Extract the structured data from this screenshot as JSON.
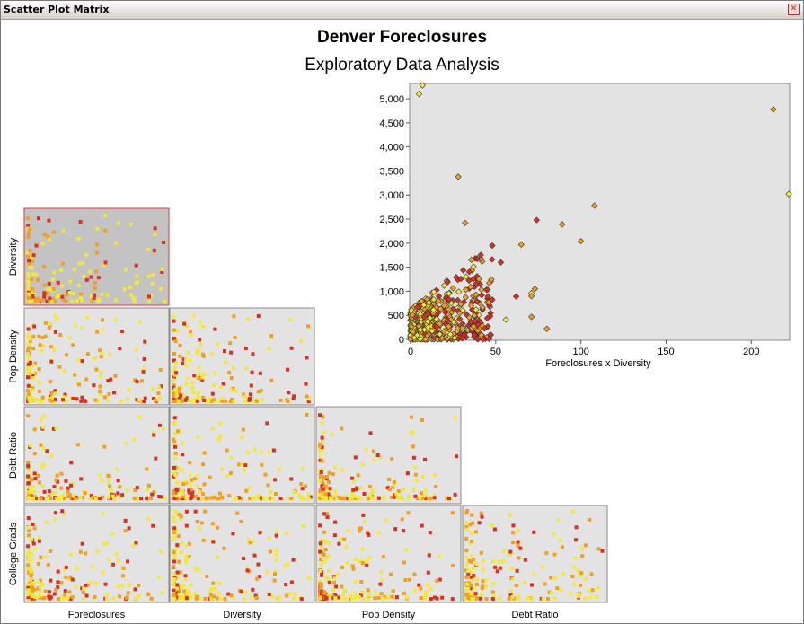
{
  "window": {
    "title": "Scatter Plot Matrix",
    "close_icon": "close-icon"
  },
  "title": "Denver Foreclosures",
  "subtitle": "Exploratory Data Analysis",
  "colors": {
    "panel_bg": "#e3e3e3",
    "selected_panel_bg": "#c3c3c3",
    "selected_border": "#dd3a3a",
    "point_yellow": "#f3e83a",
    "point_orange": "#f0a020",
    "point_red": "#d93020"
  },
  "chart_data": {
    "type": "scatter",
    "matrix": {
      "type": "scatter",
      "variables": [
        "Foreclosures",
        "Diversity",
        "Pop Density",
        "Debt Ratio",
        "College Grads"
      ],
      "row_variables": [
        "Diversity",
        "Pop Density",
        "Debt Ratio",
        "College Grads"
      ],
      "column_variables": [
        "Foreclosures",
        "Diversity",
        "Pop Density",
        "Debt Ratio"
      ],
      "selected_cell": [
        "Diversity",
        "Foreclosures"
      ]
    },
    "detail": {
      "type": "scatter",
      "xlabel": "Foreclosures x Diversity",
      "ylabel": "",
      "xlim": [
        0,
        222
      ],
      "ylim": [
        0,
        5300
      ],
      "x_ticks": [
        0,
        50,
        100,
        150,
        200
      ],
      "x_tick_labels": [
        "0",
        "50",
        "100",
        "150",
        "200"
      ],
      "y_ticks": [
        0,
        500,
        1000,
        1500,
        2000,
        2500,
        3000,
        3500,
        4000,
        4500,
        5000
      ],
      "y_tick_labels": [
        "0",
        "500",
        "1,000",
        "1,500",
        "2,000",
        "2,500",
        "3,000",
        "3,500",
        "4,000",
        "4,500",
        "5,000"
      ],
      "notable_points": [
        {
          "x": 7,
          "y": 5280,
          "color": "yellow"
        },
        {
          "x": 5,
          "y": 5100,
          "color": "yellow"
        },
        {
          "x": 213,
          "y": 4780,
          "color": "orange"
        },
        {
          "x": 28,
          "y": 3380,
          "color": "orange"
        },
        {
          "x": 222,
          "y": 3020,
          "color": "yellow"
        },
        {
          "x": 108,
          "y": 2780,
          "color": "orange"
        },
        {
          "x": 74,
          "y": 2480,
          "color": "red"
        },
        {
          "x": 32,
          "y": 2420,
          "color": "orange"
        },
        {
          "x": 89,
          "y": 2390,
          "color": "orange"
        },
        {
          "x": 100,
          "y": 2040,
          "color": "orange"
        },
        {
          "x": 65,
          "y": 1970,
          "color": "orange"
        },
        {
          "x": 48,
          "y": 1950,
          "color": "red"
        },
        {
          "x": 53,
          "y": 1600,
          "color": "red"
        },
        {
          "x": 73,
          "y": 1050,
          "color": "orange"
        },
        {
          "x": 62,
          "y": 890,
          "color": "red"
        },
        {
          "x": 71,
          "y": 960,
          "color": "yellow"
        },
        {
          "x": 71,
          "y": 900,
          "color": "orange"
        },
        {
          "x": 46,
          "y": 770,
          "color": "orange"
        },
        {
          "x": 56,
          "y": 410,
          "color": "yellow"
        },
        {
          "x": 71,
          "y": 470,
          "color": "orange"
        },
        {
          "x": 80,
          "y": 220,
          "color": "orange"
        },
        {
          "x": 37,
          "y": 270,
          "color": "orange"
        }
      ]
    }
  }
}
